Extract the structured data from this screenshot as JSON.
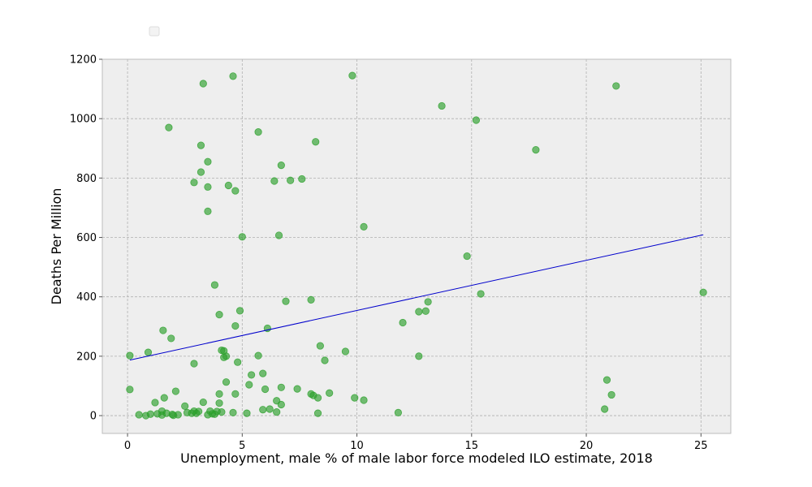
{
  "chart_data": {
    "type": "scatter",
    "title": "",
    "xlabel": "Unemployment, male % of male labor force modeled ILO estimate, 2018",
    "ylabel": "Deaths Per Million",
    "xlim": [
      -1.1,
      26.3
    ],
    "ylim": [
      -60,
      1200
    ],
    "xticks": [
      0,
      5,
      10,
      15,
      20,
      25
    ],
    "yticks": [
      0,
      200,
      400,
      600,
      800,
      1000,
      1200
    ],
    "grid": true,
    "legend": "top-left, empty",
    "colors": {
      "points": "#2ca02c",
      "trendline": "#0000cc",
      "plot_background": "#eeeeee",
      "grid": "#b0b0b0",
      "frame": "#bcbcbc"
    },
    "series": [
      {
        "values_xy": [
          [
            0.1,
            88
          ],
          [
            0.1,
            202
          ],
          [
            0.5,
            3
          ],
          [
            0.8,
            0
          ],
          [
            0.9,
            213
          ],
          [
            1.0,
            5
          ],
          [
            1.2,
            44
          ],
          [
            1.3,
            6
          ],
          [
            1.5,
            15
          ],
          [
            1.5,
            2
          ],
          [
            1.55,
            287
          ],
          [
            1.6,
            60
          ],
          [
            1.7,
            8
          ],
          [
            1.8,
            970
          ],
          [
            1.9,
            260
          ],
          [
            1.95,
            4
          ],
          [
            2.0,
            1
          ],
          [
            2.1,
            82
          ],
          [
            2.2,
            3
          ],
          [
            2.5,
            32
          ],
          [
            2.6,
            10
          ],
          [
            2.8,
            8
          ],
          [
            2.9,
            785
          ],
          [
            2.9,
            175
          ],
          [
            2.9,
            15
          ],
          [
            3.0,
            8
          ],
          [
            3.1,
            14
          ],
          [
            3.2,
            910
          ],
          [
            3.2,
            820
          ],
          [
            3.3,
            1118
          ],
          [
            3.3,
            45
          ],
          [
            3.5,
            855
          ],
          [
            3.5,
            770
          ],
          [
            3.5,
            688
          ],
          [
            3.5,
            3
          ],
          [
            3.6,
            15
          ],
          [
            3.7,
            6
          ],
          [
            3.8,
            440
          ],
          [
            3.8,
            5
          ],
          [
            3.9,
            14
          ],
          [
            4.0,
            340
          ],
          [
            4.0,
            73
          ],
          [
            4.0,
            42
          ],
          [
            4.1,
            220
          ],
          [
            4.1,
            12
          ],
          [
            4.2,
            218
          ],
          [
            4.2,
            196
          ],
          [
            4.3,
            200
          ],
          [
            4.3,
            113
          ],
          [
            4.4,
            775
          ],
          [
            4.6,
            1143
          ],
          [
            4.6,
            10
          ],
          [
            4.7,
            757
          ],
          [
            4.7,
            302
          ],
          [
            4.7,
            73
          ],
          [
            4.8,
            180
          ],
          [
            4.9,
            353
          ],
          [
            5.0,
            602
          ],
          [
            5.2,
            8
          ],
          [
            5.3,
            104
          ],
          [
            5.4,
            137
          ],
          [
            5.7,
            955
          ],
          [
            5.7,
            202
          ],
          [
            5.9,
            20
          ],
          [
            5.9,
            142
          ],
          [
            6.0,
            89
          ],
          [
            6.1,
            294
          ],
          [
            6.2,
            22
          ],
          [
            6.4,
            790
          ],
          [
            6.5,
            50
          ],
          [
            6.5,
            12
          ],
          [
            6.6,
            607
          ],
          [
            6.7,
            843
          ],
          [
            6.7,
            95
          ],
          [
            6.7,
            37
          ],
          [
            6.9,
            385
          ],
          [
            7.1,
            792
          ],
          [
            7.4,
            90
          ],
          [
            7.6,
            797
          ],
          [
            8.0,
            390
          ],
          [
            8.0,
            73
          ],
          [
            8.1,
            68
          ],
          [
            8.2,
            922
          ],
          [
            8.3,
            60
          ],
          [
            8.3,
            8
          ],
          [
            8.4,
            235
          ],
          [
            8.6,
            186
          ],
          [
            8.8,
            76
          ],
          [
            9.5,
            216
          ],
          [
            9.8,
            1145
          ],
          [
            9.9,
            60
          ],
          [
            10.3,
            636
          ],
          [
            10.3,
            52
          ],
          [
            11.8,
            10
          ],
          [
            12.0,
            313
          ],
          [
            12.7,
            350
          ],
          [
            12.7,
            200
          ],
          [
            13.0,
            352
          ],
          [
            13.1,
            383
          ],
          [
            13.7,
            1043
          ],
          [
            14.8,
            537
          ],
          [
            15.2,
            995
          ],
          [
            15.4,
            410
          ],
          [
            17.8,
            895
          ],
          [
            20.8,
            22
          ],
          [
            20.9,
            120
          ],
          [
            21.1,
            70
          ],
          [
            21.3,
            1110
          ],
          [
            25.1,
            415
          ]
        ]
      }
    ],
    "trendline": {
      "x": [
        0.1,
        25.1
      ],
      "y": [
        187,
        609
      ]
    }
  }
}
